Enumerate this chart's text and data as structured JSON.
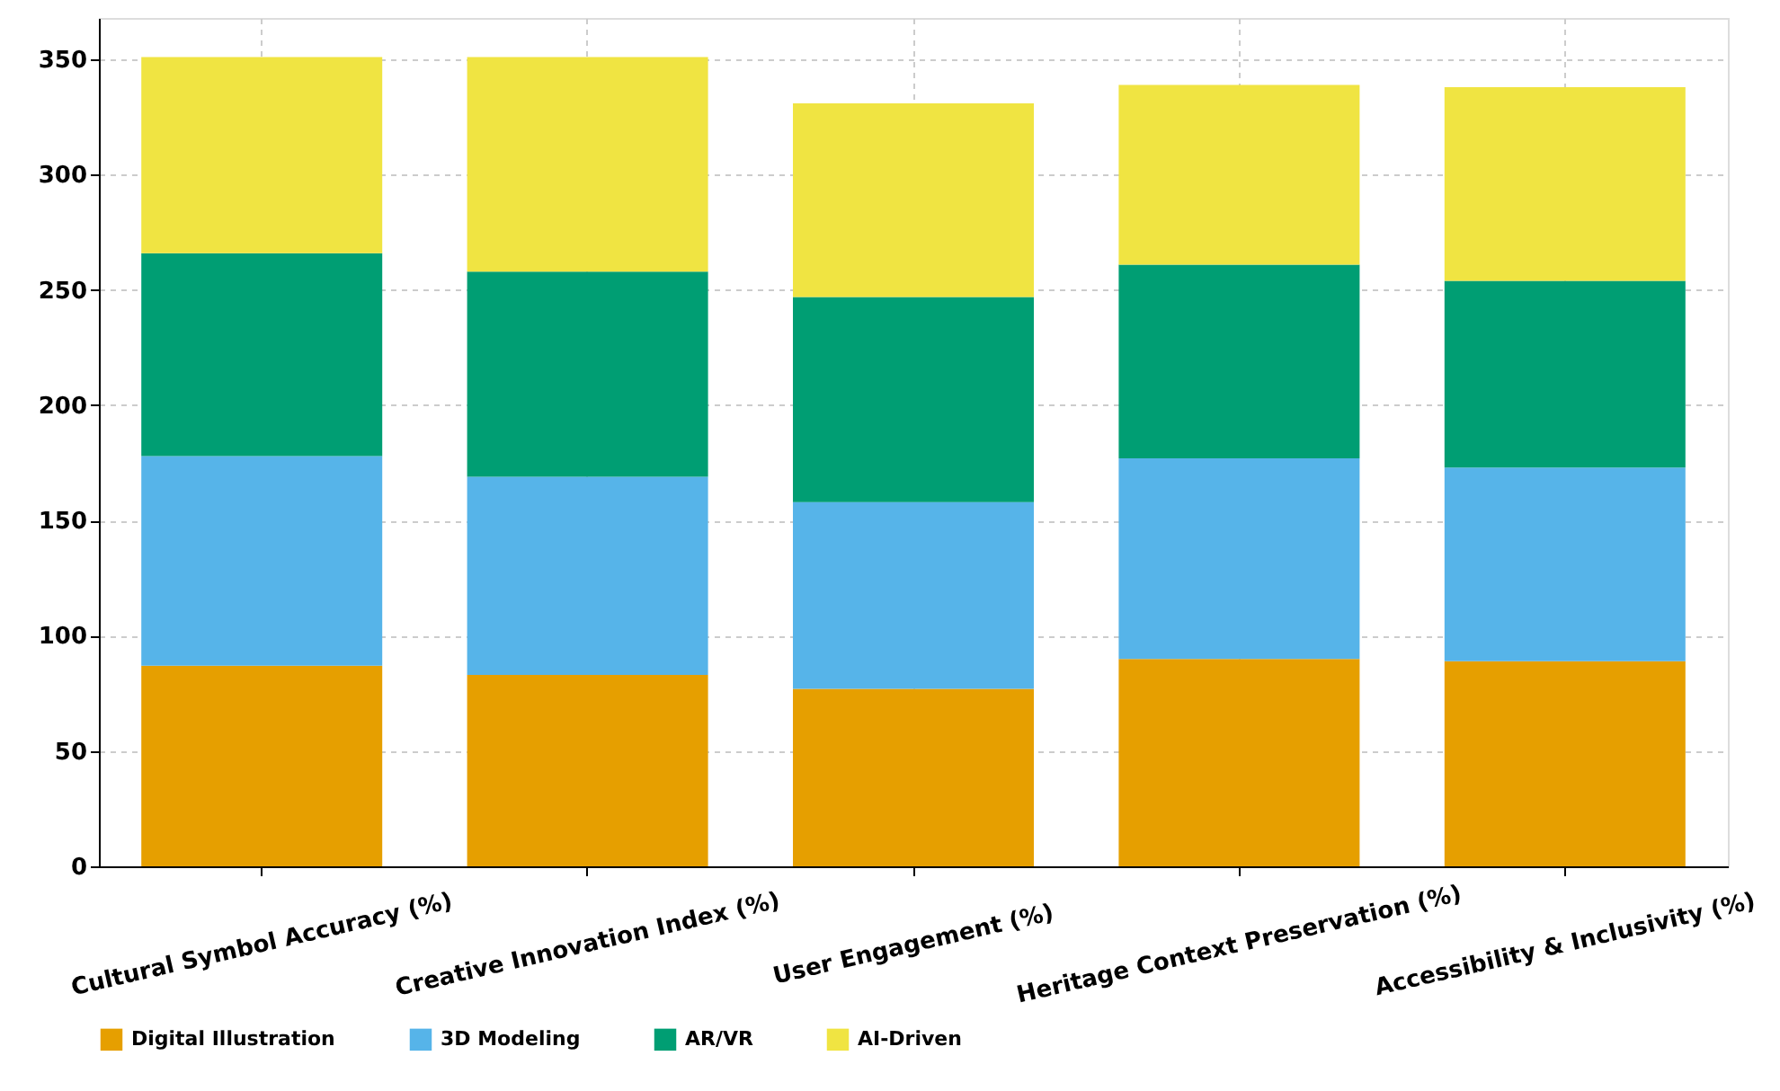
{
  "chart_data": {
    "type": "bar",
    "stacked": true,
    "categories": [
      "Cultural Symbol Accuracy (%)",
      "Creative Innovation Index (%)",
      "User Engagement (%)",
      "Heritage Context Preservation (%)",
      "Accessibility & Inclusivity (%)"
    ],
    "series": [
      {
        "name": "Digital Illustration",
        "color": "#e69f00",
        "values": [
          87,
          83,
          77,
          90,
          89
        ]
      },
      {
        "name": "3D Modeling",
        "color": "#56b4e9",
        "values": [
          91,
          86,
          81,
          87,
          84
        ]
      },
      {
        "name": "AR/VR",
        "color": "#009e73",
        "values": [
          88,
          89,
          89,
          84,
          81
        ]
      },
      {
        "name": "AI-Driven",
        "color": "#f0e442",
        "values": [
          85,
          93,
          84,
          78,
          84
        ]
      }
    ],
    "ylim": [
      0,
      368
    ],
    "yticks": [
      0,
      50,
      100,
      150,
      200,
      250,
      300,
      350
    ],
    "grid": true,
    "legend": "bottom"
  }
}
